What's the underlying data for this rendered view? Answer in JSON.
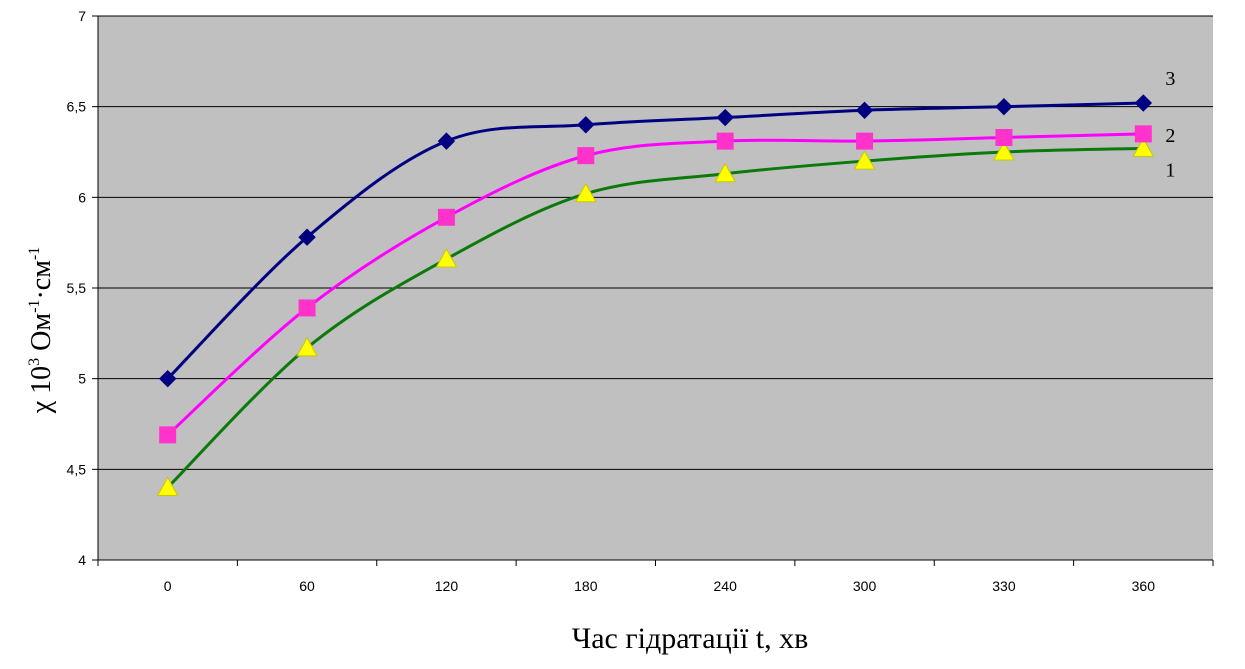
{
  "chart_data": {
    "type": "line",
    "categories": [
      "0",
      "60",
      "120",
      "180",
      "240",
      "300",
      "330",
      "360"
    ],
    "series": [
      {
        "name": "1",
        "values": [
          4.4,
          5.17,
          5.66,
          6.02,
          6.13,
          6.2,
          6.25,
          6.27
        ],
        "color": "#0b7a0b",
        "marker": "triangle",
        "marker_color": "#ffff00"
      },
      {
        "name": "2",
        "values": [
          4.69,
          5.39,
          5.89,
          6.23,
          6.31,
          6.31,
          6.33,
          6.35
        ],
        "color": "#ff00ff",
        "marker": "square",
        "marker_color": "#ff33cc"
      },
      {
        "name": "3",
        "values": [
          5.0,
          5.78,
          6.31,
          6.4,
          6.44,
          6.48,
          6.5,
          6.52
        ],
        "color": "#000080",
        "marker": "diamond",
        "marker_color": "#000080"
      }
    ],
    "ylim": [
      4,
      7
    ],
    "yticks": [
      4,
      4.5,
      5,
      5.5,
      6,
      6.5,
      7
    ],
    "ytick_labels": [
      "4",
      "4,5",
      "5",
      "5,5",
      "6",
      "6,5",
      "7"
    ],
    "xlabel": "Час гідратації t, хв",
    "ylabel_main": "χ 10",
    "ylabel_exp": "3",
    "ylabel_unit1": " Ом",
    "ylabel_unit1_exp": "-1",
    "ylabel_sep": "·см",
    "ylabel_unit2_exp": "-1",
    "grid": true,
    "plot_background": "#c0c0c0"
  }
}
